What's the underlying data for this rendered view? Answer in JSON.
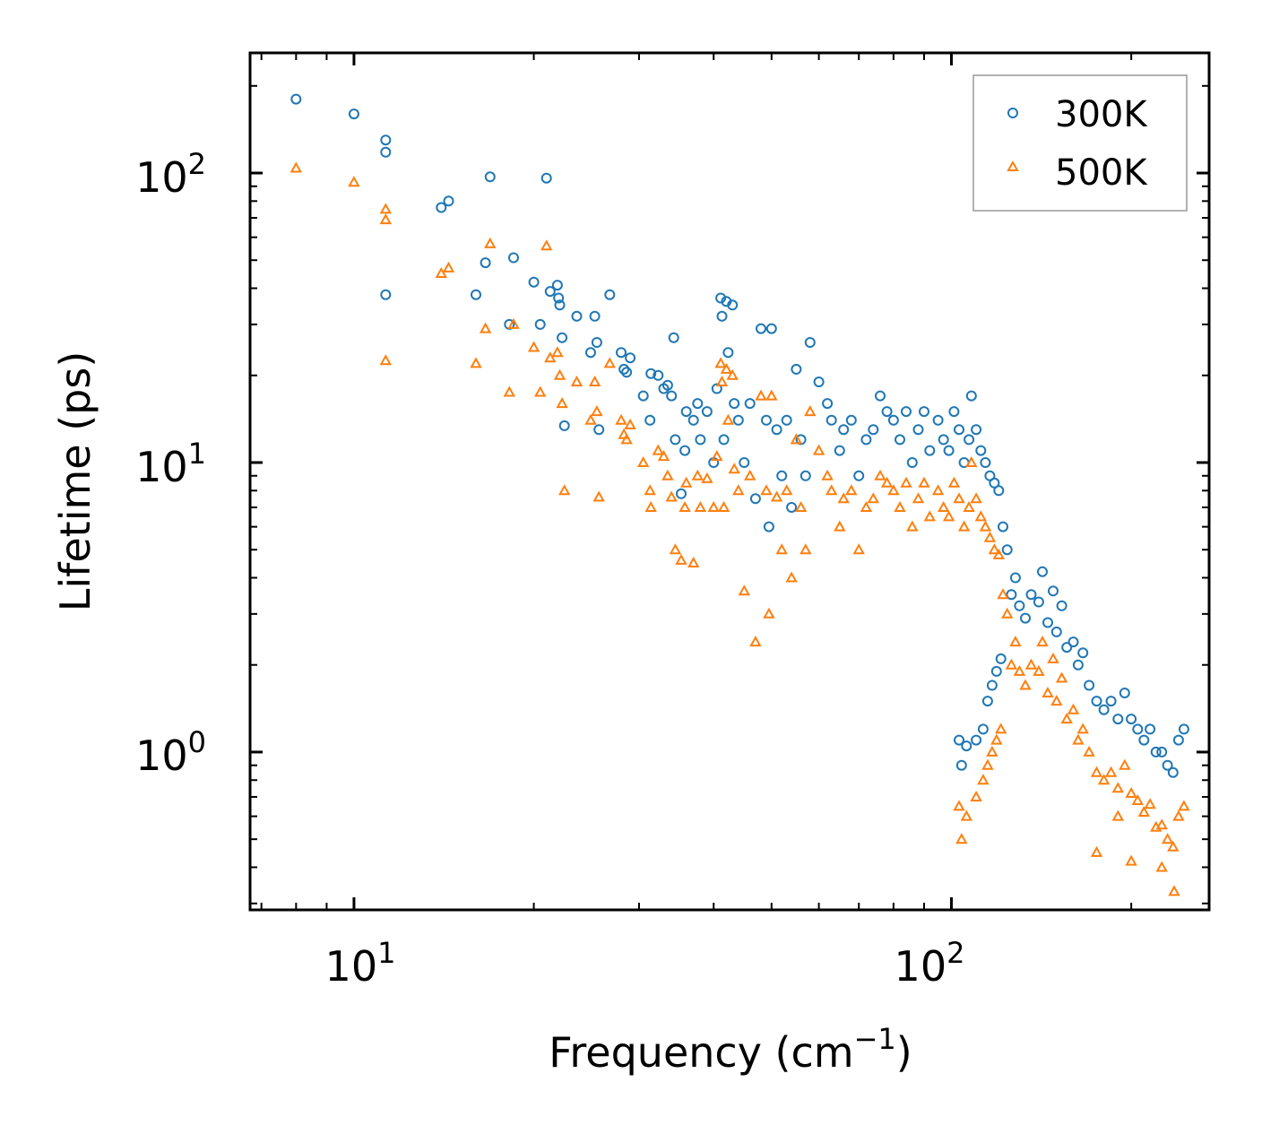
{
  "chart_data": {
    "type": "scatter",
    "xscale": "log",
    "yscale": "log",
    "xlabel": "Frequency (cm",
    "xlabel_sup": "−1",
    "xlabel_end": ")",
    "ylabel": "Lifetime (ps)",
    "xlim": [
      6.7,
      270
    ],
    "ylim": [
      0.285,
      260
    ],
    "x_ticks": [
      {
        "value": 10,
        "base": "10",
        "exp": "1"
      },
      {
        "value": 100,
        "base": "10",
        "exp": "2"
      }
    ],
    "y_ticks": [
      {
        "value": 1,
        "base": "10",
        "exp": "0"
      },
      {
        "value": 10,
        "base": "10",
        "exp": "1"
      },
      {
        "value": 100,
        "base": "10",
        "exp": "2"
      }
    ],
    "legend_position": "top-right",
    "series": [
      {
        "name": "300K",
        "marker": "circle",
        "color": "#1f77b4",
        "points": [
          [
            8,
            180
          ],
          [
            10,
            160
          ],
          [
            11.3,
            130
          ],
          [
            11.3,
            118
          ],
          [
            11.3,
            38
          ],
          [
            14,
            76
          ],
          [
            14.4,
            80
          ],
          [
            16,
            38
          ],
          [
            16.6,
            49
          ],
          [
            16.9,
            97
          ],
          [
            18.2,
            30
          ],
          [
            18.5,
            51
          ],
          [
            20,
            42
          ],
          [
            20.5,
            30
          ],
          [
            21,
            96
          ],
          [
            21.3,
            39
          ],
          [
            21.9,
            41
          ],
          [
            22,
            37
          ],
          [
            22.1,
            35
          ],
          [
            22.3,
            27
          ],
          [
            22.5,
            13.4
          ],
          [
            23.6,
            32
          ],
          [
            24.9,
            24
          ],
          [
            25.3,
            32
          ],
          [
            25.5,
            26
          ],
          [
            25.7,
            13
          ],
          [
            26.8,
            38
          ],
          [
            28,
            24
          ],
          [
            28.3,
            21
          ],
          [
            28.6,
            20.5
          ],
          [
            29,
            23
          ],
          [
            30.5,
            17
          ],
          [
            31.3,
            14
          ],
          [
            31.4,
            20.3
          ],
          [
            32.3,
            20
          ],
          [
            33,
            18
          ],
          [
            33.5,
            18.5
          ],
          [
            34,
            17
          ],
          [
            34.3,
            27
          ],
          [
            34.5,
            12
          ],
          [
            35.3,
            7.8
          ],
          [
            35.8,
            11
          ],
          [
            36,
            15
          ],
          [
            37,
            14
          ],
          [
            37.6,
            16
          ],
          [
            38,
            12
          ],
          [
            39,
            15
          ],
          [
            40,
            10
          ],
          [
            40.5,
            18
          ],
          [
            41.1,
            37
          ],
          [
            41.3,
            32
          ],
          [
            41.6,
            12
          ],
          [
            42,
            36
          ],
          [
            42.3,
            24
          ],
          [
            43,
            35
          ],
          [
            43.3,
            16
          ],
          [
            44,
            14
          ],
          [
            45,
            10
          ],
          [
            46,
            16
          ],
          [
            47,
            7.5
          ],
          [
            48,
            29
          ],
          [
            49,
            14
          ],
          [
            49.5,
            6
          ],
          [
            50,
            29
          ],
          [
            51,
            13
          ],
          [
            52,
            9
          ],
          [
            53,
            14
          ],
          [
            54,
            7
          ],
          [
            55,
            21
          ],
          [
            56,
            12
          ],
          [
            57,
            9
          ],
          [
            58,
            26
          ],
          [
            60,
            19
          ],
          [
            62,
            16
          ],
          [
            63,
            14
          ],
          [
            65,
            11
          ],
          [
            66,
            13
          ],
          [
            68,
            14
          ],
          [
            70,
            9
          ],
          [
            72,
            12
          ],
          [
            74,
            13
          ],
          [
            76,
            17
          ],
          [
            78,
            15
          ],
          [
            80,
            14
          ],
          [
            82,
            12
          ],
          [
            84,
            15
          ],
          [
            86,
            10
          ],
          [
            88,
            13
          ],
          [
            90,
            15
          ],
          [
            92,
            11
          ],
          [
            95,
            14
          ],
          [
            97,
            12
          ],
          [
            99,
            11
          ],
          [
            101,
            15
          ],
          [
            103,
            13
          ],
          [
            105,
            10
          ],
          [
            107,
            12
          ],
          [
            108,
            17
          ],
          [
            110,
            13
          ],
          [
            112,
            11
          ],
          [
            114,
            10
          ],
          [
            116,
            9
          ],
          [
            118,
            8.5
          ],
          [
            120,
            8
          ],
          [
            122,
            6
          ],
          [
            124,
            5
          ],
          [
            126,
            3.5
          ],
          [
            128,
            4
          ],
          [
            130,
            3.2
          ],
          [
            133,
            2.9
          ],
          [
            136,
            3.5
          ],
          [
            140,
            3.3
          ],
          [
            142,
            4.2
          ],
          [
            145,
            2.8
          ],
          [
            148,
            3.6
          ],
          [
            150,
            2.6
          ],
          [
            153,
            3.2
          ],
          [
            156,
            2.3
          ],
          [
            160,
            2.4
          ],
          [
            163,
            2
          ],
          [
            166,
            2.2
          ],
          [
            170,
            1.7
          ],
          [
            175,
            1.5
          ],
          [
            180,
            1.4
          ],
          [
            185,
            1.5
          ],
          [
            190,
            1.3
          ],
          [
            195,
            1.6
          ],
          [
            200,
            1.3
          ],
          [
            205,
            1.2
          ],
          [
            210,
            1.1
          ],
          [
            215,
            1.2
          ],
          [
            220,
            1
          ],
          [
            225,
            1
          ],
          [
            230,
            0.9
          ],
          [
            235,
            0.85
          ],
          [
            240,
            1.1
          ],
          [
            245,
            1.2
          ],
          [
            103,
            1.1
          ],
          [
            104,
            0.9
          ],
          [
            106,
            1.05
          ],
          [
            110,
            1.1
          ],
          [
            113,
            1.2
          ],
          [
            115,
            1.5
          ],
          [
            117,
            1.7
          ],
          [
            119,
            1.9
          ],
          [
            121,
            2.1
          ]
        ]
      },
      {
        "name": "500K",
        "marker": "triangle",
        "color": "#ff7f0e",
        "points": [
          [
            8,
            104
          ],
          [
            10,
            93
          ],
          [
            11.3,
            75
          ],
          [
            11.3,
            69
          ],
          [
            11.3,
            22.5
          ],
          [
            14,
            45
          ],
          [
            14.4,
            47
          ],
          [
            16,
            22
          ],
          [
            16.6,
            29
          ],
          [
            16.9,
            57
          ],
          [
            18.2,
            17.5
          ],
          [
            18.5,
            30
          ],
          [
            20,
            25
          ],
          [
            20.5,
            17.5
          ],
          [
            21,
            56
          ],
          [
            21.3,
            23
          ],
          [
            21.9,
            24
          ],
          [
            22.1,
            20
          ],
          [
            22.3,
            16
          ],
          [
            22.5,
            8
          ],
          [
            23.6,
            19
          ],
          [
            24.9,
            14
          ],
          [
            25.3,
            19
          ],
          [
            25.5,
            15
          ],
          [
            25.7,
            7.6
          ],
          [
            26.8,
            22
          ],
          [
            28,
            14
          ],
          [
            28.3,
            12.5
          ],
          [
            28.6,
            12
          ],
          [
            29,
            13.5
          ],
          [
            30.5,
            10
          ],
          [
            31.3,
            8
          ],
          [
            31.4,
            7
          ],
          [
            32.3,
            11
          ],
          [
            33,
            10.5
          ],
          [
            33.5,
            9
          ],
          [
            34,
            7.6
          ],
          [
            34.5,
            5
          ],
          [
            35.3,
            4.6
          ],
          [
            35.8,
            7
          ],
          [
            36,
            8.5
          ],
          [
            37,
            4.5
          ],
          [
            37.6,
            9
          ],
          [
            38,
            7
          ],
          [
            39,
            8.8
          ],
          [
            40,
            7
          ],
          [
            40.5,
            10.5
          ],
          [
            41.1,
            22
          ],
          [
            41.3,
            19
          ],
          [
            41.6,
            7
          ],
          [
            42,
            21
          ],
          [
            42.3,
            14
          ],
          [
            43,
            20
          ],
          [
            43.3,
            9.5
          ],
          [
            44,
            8
          ],
          [
            45,
            3.6
          ],
          [
            46,
            9
          ],
          [
            47,
            2.4
          ],
          [
            48,
            17
          ],
          [
            49,
            8
          ],
          [
            49.5,
            3
          ],
          [
            50,
            17
          ],
          [
            51,
            7.6
          ],
          [
            52,
            5
          ],
          [
            53,
            8
          ],
          [
            54,
            4
          ],
          [
            55,
            12
          ],
          [
            56,
            7
          ],
          [
            57,
            5
          ],
          [
            58,
            15
          ],
          [
            60,
            11
          ],
          [
            62,
            9
          ],
          [
            63,
            8
          ],
          [
            65,
            6
          ],
          [
            66,
            7.5
          ],
          [
            68,
            8
          ],
          [
            70,
            5
          ],
          [
            72,
            7
          ],
          [
            74,
            7.5
          ],
          [
            76,
            9
          ],
          [
            78,
            8.5
          ],
          [
            80,
            8
          ],
          [
            82,
            7
          ],
          [
            84,
            8.5
          ],
          [
            86,
            6
          ],
          [
            88,
            7.5
          ],
          [
            90,
            8.5
          ],
          [
            92,
            6.5
          ],
          [
            95,
            8
          ],
          [
            97,
            7
          ],
          [
            99,
            6.5
          ],
          [
            101,
            8.5
          ],
          [
            103,
            7.5
          ],
          [
            105,
            6
          ],
          [
            107,
            7
          ],
          [
            108,
            10
          ],
          [
            110,
            7.5
          ],
          [
            112,
            6.5
          ],
          [
            114,
            6
          ],
          [
            116,
            5.5
          ],
          [
            118,
            5
          ],
          [
            120,
            4.8
          ],
          [
            122,
            3.5
          ],
          [
            124,
            3
          ],
          [
            126,
            2
          ],
          [
            128,
            2.4
          ],
          [
            130,
            1.9
          ],
          [
            133,
            1.7
          ],
          [
            136,
            2
          ],
          [
            140,
            1.9
          ],
          [
            142,
            2.4
          ],
          [
            145,
            1.6
          ],
          [
            148,
            2.1
          ],
          [
            150,
            1.5
          ],
          [
            153,
            1.8
          ],
          [
            156,
            1.3
          ],
          [
            160,
            1.4
          ],
          [
            163,
            1.1
          ],
          [
            166,
            1.2
          ],
          [
            170,
            1
          ],
          [
            175,
            0.85
          ],
          [
            180,
            0.8
          ],
          [
            185,
            0.85
          ],
          [
            190,
            0.75
          ],
          [
            195,
            0.9
          ],
          [
            200,
            0.72
          ],
          [
            205,
            0.68
          ],
          [
            210,
            0.62
          ],
          [
            215,
            0.66
          ],
          [
            220,
            0.55
          ],
          [
            225,
            0.56
          ],
          [
            230,
            0.5
          ],
          [
            235,
            0.47
          ],
          [
            240,
            0.6
          ],
          [
            245,
            0.65
          ],
          [
            103,
            0.65
          ],
          [
            104,
            0.5
          ],
          [
            106,
            0.6
          ],
          [
            110,
            0.7
          ],
          [
            113,
            0.8
          ],
          [
            115,
            0.9
          ],
          [
            117,
            1
          ],
          [
            119,
            1.1
          ],
          [
            121,
            1.2
          ],
          [
            175,
            0.45
          ],
          [
            190,
            0.6
          ],
          [
            200,
            0.42
          ],
          [
            236,
            0.33
          ],
          [
            225,
            0.4
          ]
        ]
      }
    ]
  }
}
